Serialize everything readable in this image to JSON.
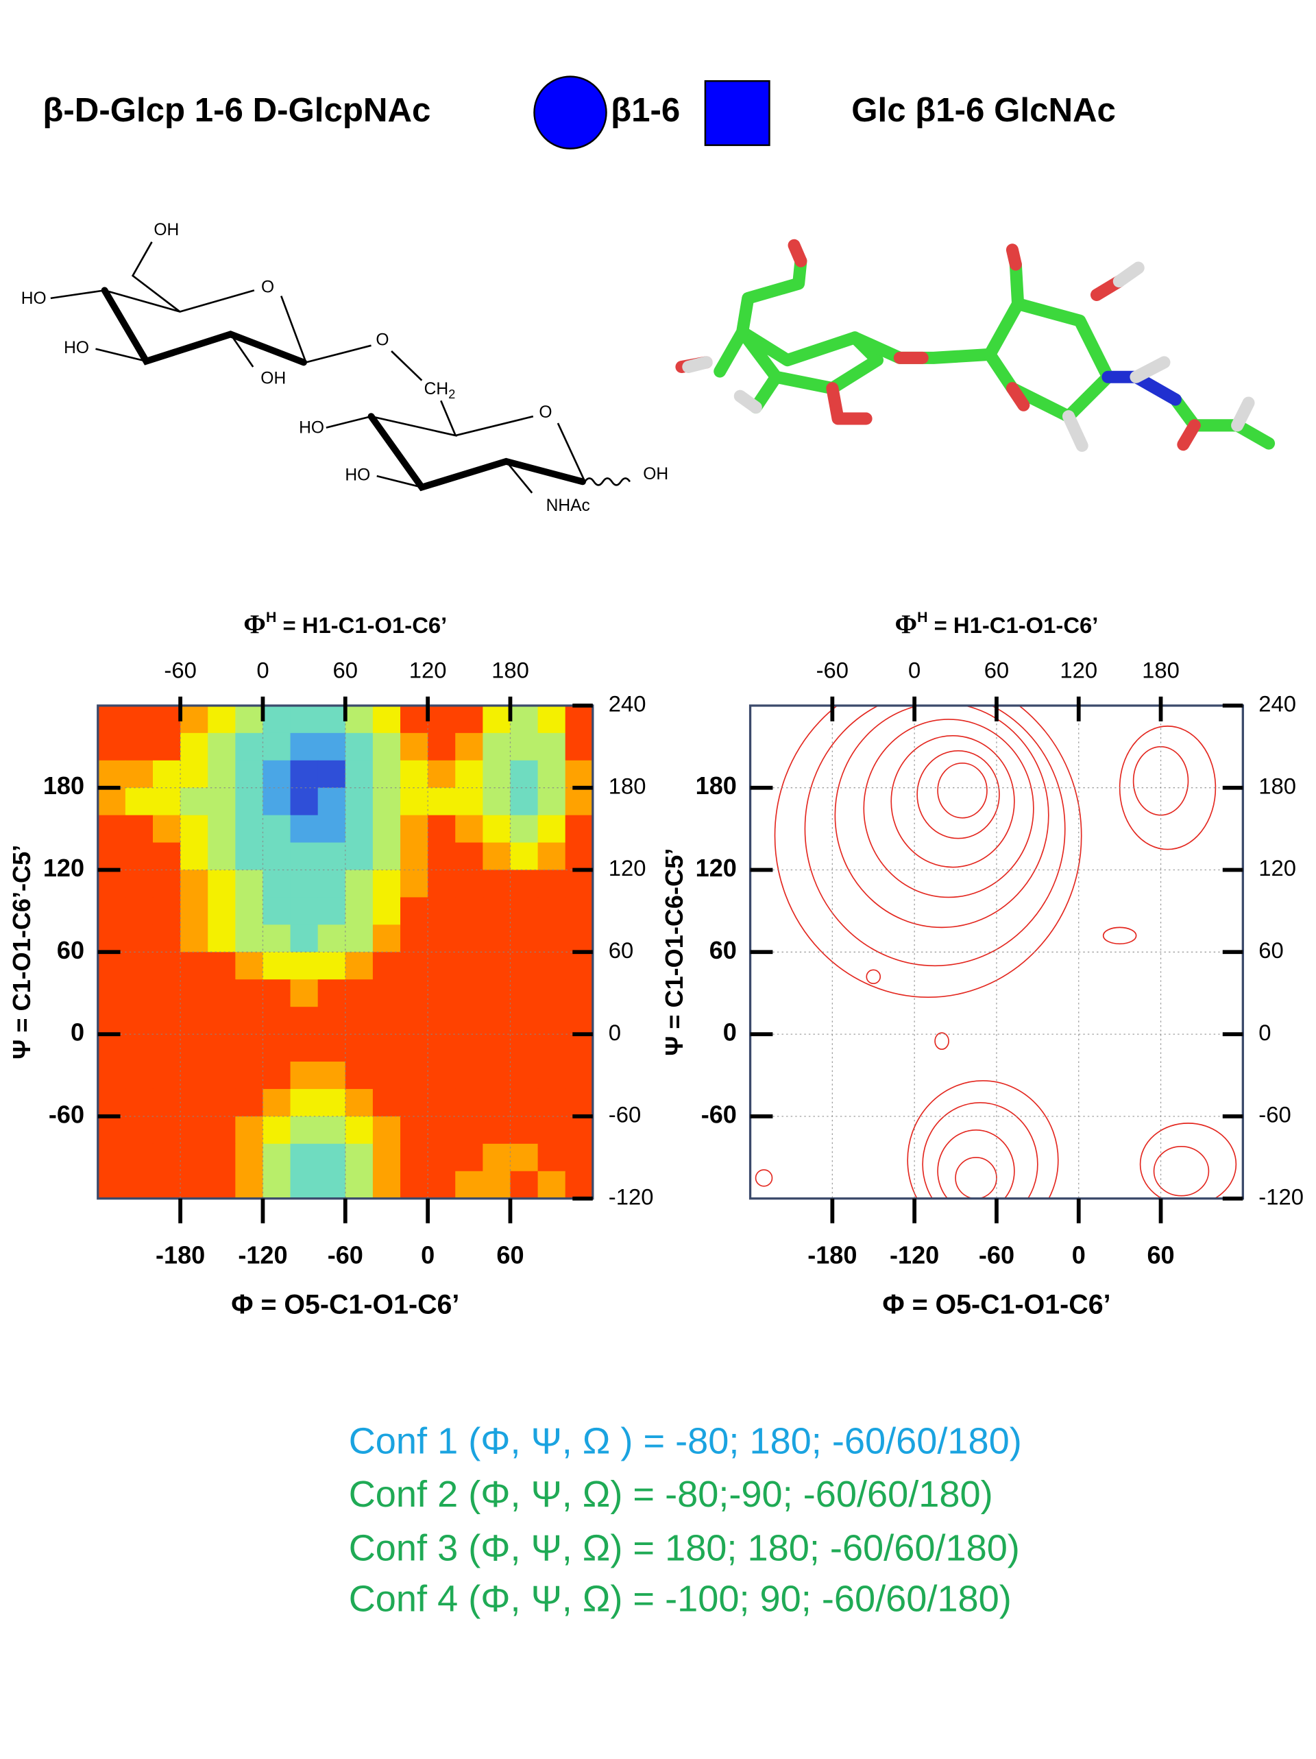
{
  "header": {
    "name": "β-D-Glcp 1-6 D-GlcpNAc",
    "linkage": "β1-6",
    "short_name": "Glc β1-6 GlcNAc"
  },
  "structure": {
    "labels": [
      "OH",
      "HO",
      "O",
      "HO",
      "OH",
      "O",
      "CH",
      "2",
      "HO",
      "O",
      "HO",
      "NHAc",
      "OH"
    ]
  },
  "chart_data": [
    {
      "type": "heatmap",
      "x2label": {
        "symbol": "Φ",
        "superscript": "H",
        "text": " = H1-C1-O1-C6’"
      },
      "xlabel": "Φ = O5-C1-O1-C6’",
      "ylabel": "Ψ = C1-O1-C6’-C5’",
      "xlim": [
        -240,
        120
      ],
      "xticks": [
        -180,
        -120,
        -60,
        0,
        60
      ],
      "x2lim": [
        -120,
        240
      ],
      "x2ticks": [
        -60,
        0,
        60,
        120,
        180
      ],
      "ylim": [
        -120,
        240
      ],
      "yticks": [
        180,
        120,
        60,
        0,
        -60
      ],
      "y2lim": [
        -120,
        240
      ],
      "y2ticks": [
        240,
        180,
        120,
        60,
        0,
        -60,
        -120
      ],
      "grid": true,
      "colors": [
        "#2f4fd8",
        "#4aa6e6",
        "#6fdcc0",
        "#b8ee6a",
        "#f4f000",
        "#ffa200",
        "#ff4200"
      ],
      "xbins": [
        -240,
        -220,
        -200,
        -180,
        -160,
        -140,
        -120,
        -100,
        -80,
        -60,
        -40,
        -20,
        0,
        20,
        40,
        60,
        80,
        100,
        120
      ],
      "ybins": [
        240,
        220,
        200,
        180,
        160,
        140,
        120,
        100,
        80,
        60,
        40,
        20,
        0,
        -20,
        -40,
        -60,
        -80,
        -100,
        -120
      ],
      "z": [
        [
          6,
          6,
          6,
          5,
          4,
          3,
          2,
          2,
          2,
          3,
          4,
          6,
          6,
          6,
          4,
          3,
          4,
          6
        ],
        [
          6,
          6,
          6,
          4,
          3,
          2,
          2,
          1,
          1,
          2,
          3,
          5,
          6,
          5,
          3,
          3,
          3,
          6
        ],
        [
          5,
          5,
          4,
          4,
          3,
          2,
          1,
          0,
          0,
          2,
          3,
          4,
          5,
          4,
          3,
          2,
          3,
          5
        ],
        [
          5,
          4,
          4,
          3,
          3,
          2,
          1,
          0,
          1,
          2,
          3,
          4,
          4,
          4,
          3,
          2,
          3,
          5
        ],
        [
          6,
          6,
          5,
          4,
          3,
          2,
          2,
          1,
          1,
          2,
          3,
          5,
          6,
          5,
          4,
          3,
          4,
          6
        ],
        [
          6,
          6,
          6,
          4,
          3,
          2,
          2,
          2,
          2,
          2,
          3,
          5,
          6,
          6,
          5,
          4,
          5,
          6
        ],
        [
          6,
          6,
          6,
          5,
          4,
          3,
          2,
          2,
          2,
          3,
          4,
          5,
          6,
          6,
          6,
          6,
          6,
          6
        ],
        [
          6,
          6,
          6,
          5,
          4,
          3,
          2,
          2,
          2,
          3,
          4,
          6,
          6,
          6,
          6,
          6,
          6,
          6
        ],
        [
          6,
          6,
          6,
          5,
          4,
          3,
          3,
          2,
          3,
          3,
          5,
          6,
          6,
          6,
          6,
          6,
          6,
          6
        ],
        [
          6,
          6,
          6,
          6,
          6,
          5,
          4,
          4,
          4,
          5,
          6,
          6,
          6,
          6,
          6,
          6,
          6,
          6
        ],
        [
          6,
          6,
          6,
          6,
          6,
          6,
          6,
          5,
          6,
          6,
          6,
          6,
          6,
          6,
          6,
          6,
          6,
          6
        ],
        [
          6,
          6,
          6,
          6,
          6,
          6,
          6,
          6,
          6,
          6,
          6,
          6,
          6,
          6,
          6,
          6,
          6,
          6
        ],
        [
          6,
          6,
          6,
          6,
          6,
          6,
          6,
          6,
          6,
          6,
          6,
          6,
          6,
          6,
          6,
          6,
          6,
          6
        ],
        [
          6,
          6,
          6,
          6,
          6,
          6,
          6,
          5,
          5,
          6,
          6,
          6,
          6,
          6,
          6,
          6,
          6,
          6
        ],
        [
          6,
          6,
          6,
          6,
          6,
          6,
          5,
          4,
          4,
          5,
          6,
          6,
          6,
          6,
          6,
          6,
          6,
          6
        ],
        [
          6,
          6,
          6,
          6,
          6,
          5,
          4,
          3,
          3,
          4,
          5,
          6,
          6,
          6,
          6,
          6,
          6,
          6
        ],
        [
          6,
          6,
          6,
          6,
          6,
          5,
          3,
          2,
          2,
          3,
          5,
          6,
          6,
          6,
          5,
          5,
          6,
          6
        ],
        [
          6,
          6,
          6,
          6,
          6,
          5,
          3,
          2,
          2,
          3,
          5,
          6,
          6,
          5,
          5,
          6,
          5,
          6
        ]
      ]
    },
    {
      "type": "contour",
      "x2label": {
        "symbol": "Φ",
        "superscript": "H",
        "text": " = H1-C1-O1-C6’"
      },
      "xlabel": "Φ = O5-C1-O1-C6’",
      "ylabel": "Ψ = C1-O1-C6-C5’",
      "xlim": [
        -240,
        120
      ],
      "xticks": [
        -180,
        -120,
        -60,
        0,
        60
      ],
      "x2lim": [
        -120,
        240
      ],
      "x2ticks": [
        -60,
        0,
        60,
        120,
        180
      ],
      "ylim": [
        -120,
        240
      ],
      "yticks": [
        180,
        120,
        60,
        0,
        -60
      ],
      "y2lim": [
        -120,
        240
      ],
      "y2ticks": [
        240,
        180,
        120,
        60,
        0,
        -60,
        -120
      ],
      "grid": true,
      "color": "#e3261e",
      "contours": [
        {
          "cx": -85,
          "cy": 178,
          "rx": 18,
          "ry": 20
        },
        {
          "cx": -88,
          "cy": 175,
          "rx": 30,
          "ry": 32
        },
        {
          "cx": -92,
          "cy": 170,
          "rx": 45,
          "ry": 48
        },
        {
          "cx": -95,
          "cy": 165,
          "rx": 62,
          "ry": 65
        },
        {
          "cx": -100,
          "cy": 160,
          "rx": 78,
          "ry": 82
        },
        {
          "cx": -105,
          "cy": 150,
          "rx": 95,
          "ry": 100
        },
        {
          "cx": -110,
          "cy": 145,
          "rx": 112,
          "ry": 118
        },
        {
          "cx": 60,
          "cy": 185,
          "rx": 20,
          "ry": 25
        },
        {
          "cx": 65,
          "cy": 180,
          "rx": 35,
          "ry": 45
        },
        {
          "cx": -75,
          "cy": -105,
          "rx": 15,
          "ry": 15
        },
        {
          "cx": -75,
          "cy": -100,
          "rx": 28,
          "ry": 30
        },
        {
          "cx": -72,
          "cy": -95,
          "rx": 42,
          "ry": 45
        },
        {
          "cx": -70,
          "cy": -92,
          "rx": 55,
          "ry": 58
        },
        {
          "cx": 75,
          "cy": -100,
          "rx": 20,
          "ry": 18
        },
        {
          "cx": 80,
          "cy": -95,
          "rx": 35,
          "ry": 30
        },
        {
          "cx": -150,
          "cy": 42,
          "rx": 5,
          "ry": 5
        },
        {
          "cx": -100,
          "cy": -5,
          "rx": 5,
          "ry": 6
        },
        {
          "cx": 30,
          "cy": 72,
          "rx": 12,
          "ry": 6
        },
        {
          "cx": -230,
          "cy": -105,
          "rx": 6,
          "ry": 6
        }
      ]
    }
  ],
  "conformations": [
    "Conf 1 (Φ, Ψ, Ω ) = -80; 180; -60/60/180)",
    "Conf 2 (Φ, Ψ, Ω) =  -80;-90;  -60/60/180)",
    "Conf 3 (Φ, Ψ, Ω) =  180; 180;  -60/60/180)",
    "Conf 4 (Φ, Ψ, Ω) =  -100; 90;   -60/60/180)"
  ]
}
